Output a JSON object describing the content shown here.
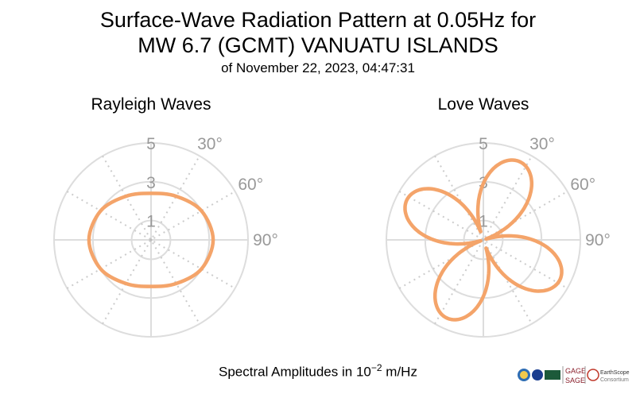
{
  "title": {
    "line1": "Surface-Wave Radiation Pattern at 0.05Hz for",
    "line2": "MW 6.7 (GCMT) VANUATU ISLANDS",
    "line3": "of November 22, 2023, 04:47:31"
  },
  "footer": {
    "prefix": "Spectral Amplitudes in",
    "base": "10",
    "exponent": "−2",
    "unit": "m/Hz"
  },
  "logos": {
    "text_gage": "GAGE",
    "text_sage": "SAGE",
    "text_es": "EarthScope",
    "text_consortium": "Consortium"
  },
  "chart_data": [
    {
      "type": "polar-line",
      "title": "Rayleigh Waves",
      "radial_ticks": [
        "1",
        "3",
        "5"
      ],
      "radial_max": 5,
      "angle_ticks": [
        "30°",
        "60°",
        "90°"
      ],
      "color": "#f4a46a",
      "azimuth_deg": [
        0,
        30,
        60,
        90,
        120,
        150,
        180,
        210,
        240,
        270,
        300,
        330
      ],
      "amplitude": [
        2.4,
        2.6,
        3.0,
        3.2,
        3.0,
        2.6,
        2.4,
        2.6,
        3.0,
        3.2,
        3.0,
        2.6
      ]
    },
    {
      "type": "polar-line",
      "title": "Love Waves",
      "radial_ticks": [
        "1",
        "3",
        "5"
      ],
      "radial_max": 5,
      "angle_ticks": [
        "30°",
        "60°",
        "90°"
      ],
      "color": "#f4a46a",
      "lobe_azimuths_deg": [
        25,
        118,
        205,
        298
      ],
      "lobe_peak_amplitude": 4.3
    }
  ]
}
